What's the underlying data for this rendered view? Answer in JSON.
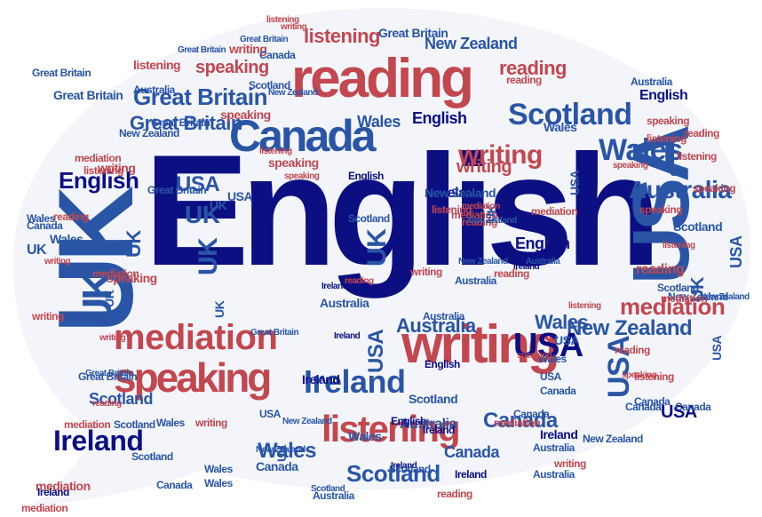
{
  "cloud": {
    "colors": {
      "navy": "#0c0f82",
      "blue": "#2a55a6",
      "red": "#c2474f",
      "lightred": "#d96a70",
      "background": "#f3f5fb",
      "outline": "#ffffff"
    },
    "words": [
      {
        "text": "English",
        "color": "navy"
      },
      {
        "text": "UK",
        "color": "blue"
      },
      {
        "text": "USA",
        "color": "blue"
      },
      {
        "text": "reading",
        "color": "red"
      },
      {
        "text": "writing",
        "color": "red"
      },
      {
        "text": "Canada",
        "color": "blue"
      },
      {
        "text": "speaking",
        "color": "red"
      },
      {
        "text": "listening",
        "color": "red"
      },
      {
        "text": "mediation",
        "color": "red"
      },
      {
        "text": "Scotland",
        "color": "blue"
      },
      {
        "text": "Wales",
        "color": "blue"
      },
      {
        "text": "Ireland",
        "color": "blue"
      },
      {
        "text": "Great Britain",
        "color": "blue"
      },
      {
        "text": "Australia",
        "color": "blue"
      },
      {
        "text": "New Zealand",
        "color": "blue"
      },
      {
        "text": "UK",
        "color": "blue"
      },
      {
        "text": "USA",
        "color": "blue"
      },
      {
        "text": "English",
        "color": "navy"
      },
      {
        "text": "Canada",
        "color": "blue"
      },
      {
        "text": "Scotland",
        "color": "blue"
      },
      {
        "text": "listening",
        "color": "red"
      },
      {
        "text": "Ireland",
        "color": "navy"
      },
      {
        "text": "Wales",
        "color": "blue"
      },
      {
        "text": "Australia",
        "color": "blue"
      },
      {
        "text": "New Zealand",
        "color": "blue"
      },
      {
        "text": "writing",
        "color": "red"
      },
      {
        "text": "reading",
        "color": "red"
      },
      {
        "text": "speaking",
        "color": "red"
      },
      {
        "text": "mediation",
        "color": "red"
      },
      {
        "text": "Great Britain",
        "color": "blue"
      },
      {
        "text": "UK",
        "color": "blue"
      },
      {
        "text": "USA",
        "color": "navy"
      },
      {
        "text": "English",
        "color": "navy"
      },
      {
        "text": "UK",
        "color": "blue"
      },
      {
        "text": "UK",
        "color": "blue"
      },
      {
        "text": "USA",
        "color": "blue"
      },
      {
        "text": "Ireland",
        "color": "navy"
      },
      {
        "text": "Wales",
        "color": "blue"
      },
      {
        "text": "Canada",
        "color": "blue"
      },
      {
        "text": "Scotland",
        "color": "blue"
      },
      {
        "text": "Australia",
        "color": "blue"
      },
      {
        "text": "Great Britain",
        "color": "blue"
      },
      {
        "text": "New Zealand",
        "color": "blue"
      },
      {
        "text": "writing",
        "color": "red"
      },
      {
        "text": "reading",
        "color": "red"
      },
      {
        "text": "speaking",
        "color": "red"
      },
      {
        "text": "listening",
        "color": "red"
      },
      {
        "text": "mediation",
        "color": "red"
      },
      {
        "text": "UK",
        "color": "blue"
      },
      {
        "text": "USA",
        "color": "blue"
      },
      {
        "text": "English",
        "color": "navy"
      },
      {
        "text": "Ireland",
        "color": "navy"
      },
      {
        "text": "Wales",
        "color": "blue"
      },
      {
        "text": "Canada",
        "color": "blue"
      },
      {
        "text": "Scotland",
        "color": "blue"
      },
      {
        "text": "Australia",
        "color": "blue"
      },
      {
        "text": "New Zealand",
        "color": "blue"
      },
      {
        "text": "Great Britain",
        "color": "blue"
      },
      {
        "text": "writing",
        "color": "red"
      },
      {
        "text": "reading",
        "color": "red"
      },
      {
        "text": "speaking",
        "color": "red"
      },
      {
        "text": "listening",
        "color": "red"
      },
      {
        "text": "mediation",
        "color": "red"
      },
      {
        "text": "UK",
        "color": "blue"
      },
      {
        "text": "USA",
        "color": "navy"
      },
      {
        "text": "English",
        "color": "navy"
      },
      {
        "text": "Ireland",
        "color": "navy"
      },
      {
        "text": "Wales",
        "color": "blue"
      },
      {
        "text": "Canada",
        "color": "blue"
      },
      {
        "text": "Scotland",
        "color": "blue"
      },
      {
        "text": "Australia",
        "color": "blue"
      },
      {
        "text": "New Zealand",
        "color": "blue"
      },
      {
        "text": "Great Britain",
        "color": "blue"
      },
      {
        "text": "writing",
        "color": "red"
      },
      {
        "text": "reading",
        "color": "red"
      },
      {
        "text": "speaking",
        "color": "red"
      },
      {
        "text": "listening",
        "color": "red"
      },
      {
        "text": "mediation",
        "color": "red"
      },
      {
        "text": "UK",
        "color": "blue"
      },
      {
        "text": "USA",
        "color": "blue"
      },
      {
        "text": "English",
        "color": "navy"
      },
      {
        "text": "Ireland",
        "color": "navy"
      },
      {
        "text": "Wales",
        "color": "blue"
      },
      {
        "text": "Canada",
        "color": "blue"
      },
      {
        "text": "Scotland",
        "color": "blue"
      },
      {
        "text": "Australia",
        "color": "blue"
      },
      {
        "text": "New Zealand",
        "color": "blue"
      },
      {
        "text": "Great Britain",
        "color": "blue"
      },
      {
        "text": "writing",
        "color": "red"
      },
      {
        "text": "reading",
        "color": "red"
      },
      {
        "text": "speaking",
        "color": "red"
      },
      {
        "text": "listening",
        "color": "red"
      },
      {
        "text": "mediation",
        "color": "red"
      },
      {
        "text": "UK",
        "color": "blue"
      },
      {
        "text": "USA",
        "color": "blue"
      },
      {
        "text": "Ireland",
        "color": "navy"
      },
      {
        "text": "Wales",
        "color": "blue"
      },
      {
        "text": "Canada",
        "color": "blue"
      },
      {
        "text": "Scotland",
        "color": "blue"
      },
      {
        "text": "Australia",
        "color": "blue"
      },
      {
        "text": "New Zealand",
        "color": "blue"
      },
      {
        "text": "Great Britain",
        "color": "blue"
      },
      {
        "text": "writing",
        "color": "red"
      },
      {
        "text": "reading",
        "color": "red"
      },
      {
        "text": "speaking",
        "color": "red"
      },
      {
        "text": "listening",
        "color": "red"
      },
      {
        "text": "mediation",
        "color": "red"
      },
      {
        "text": "UK",
        "color": "blue"
      },
      {
        "text": "USA",
        "color": "blue"
      },
      {
        "text": "English",
        "color": "navy"
      },
      {
        "text": "Ireland",
        "color": "navy"
      },
      {
        "text": "Wales",
        "color": "blue"
      },
      {
        "text": "Canada",
        "color": "blue"
      },
      {
        "text": "Scotland",
        "color": "blue"
      },
      {
        "text": "Australia",
        "color": "blue"
      },
      {
        "text": "New Zealand",
        "color": "blue"
      },
      {
        "text": "Great Britain",
        "color": "blue"
      },
      {
        "text": "writing",
        "color": "red"
      },
      {
        "text": "reading",
        "color": "red"
      },
      {
        "text": "speaking",
        "color": "red"
      },
      {
        "text": "listening",
        "color": "red"
      },
      {
        "text": "mediation",
        "color": "red"
      },
      {
        "text": "UK",
        "color": "blue"
      },
      {
        "text": "USA",
        "color": "blue"
      },
      {
        "text": "Ireland",
        "color": "navy"
      },
      {
        "text": "Wales",
        "color": "blue"
      },
      {
        "text": "Canada",
        "color": "blue"
      },
      {
        "text": "Scotland",
        "color": "blue"
      },
      {
        "text": "Australia",
        "color": "blue"
      },
      {
        "text": "New Zealand",
        "color": "blue"
      },
      {
        "text": "Great Britain",
        "color": "blue"
      },
      {
        "text": "writing",
        "color": "red"
      },
      {
        "text": "reading",
        "color": "red"
      },
      {
        "text": "speaking",
        "color": "red"
      },
      {
        "text": "listening",
        "color": "red"
      },
      {
        "text": "mediation",
        "color": "red"
      },
      {
        "text": "UK",
        "color": "blue"
      },
      {
        "text": "USA",
        "color": "blue"
      },
      {
        "text": "English",
        "color": "navy"
      },
      {
        "text": "Ireland",
        "color": "navy"
      },
      {
        "text": "Wales",
        "color": "blue"
      },
      {
        "text": "Canada",
        "color": "blue"
      },
      {
        "text": "Scotland",
        "color": "blue"
      },
      {
        "text": "Australia",
        "color": "blue"
      },
      {
        "text": "New Zealand",
        "color": "blue"
      },
      {
        "text": "Great Britain",
        "color": "blue"
      },
      {
        "text": "writing",
        "color": "red"
      },
      {
        "text": "reading",
        "color": "red"
      },
      {
        "text": "speaking",
        "color": "red"
      },
      {
        "text": "listening",
        "color": "red"
      },
      {
        "text": "mediation",
        "color": "red"
      },
      {
        "text": "UK",
        "color": "blue"
      },
      {
        "text": "USA",
        "color": "blue"
      },
      {
        "text": "Ireland",
        "color": "navy"
      },
      {
        "text": "Wales",
        "color": "blue"
      },
      {
        "text": "Canada",
        "color": "blue"
      },
      {
        "text": "Scotland",
        "color": "blue"
      },
      {
        "text": "Australia",
        "color": "blue"
      },
      {
        "text": "New Zealand",
        "color": "blue"
      },
      {
        "text": "Great Britain",
        "color": "blue"
      },
      {
        "text": "writing",
        "color": "red"
      },
      {
        "text": "reading",
        "color": "red"
      },
      {
        "text": "speaking",
        "color": "red"
      },
      {
        "text": "listening",
        "color": "red"
      },
      {
        "text": "mediation",
        "color": "red"
      },
      {
        "text": "UK",
        "color": "blue"
      },
      {
        "text": "USA",
        "color": "blue"
      },
      {
        "text": "Ireland",
        "color": "navy"
      },
      {
        "text": "Wales",
        "color": "blue"
      },
      {
        "text": "Canada",
        "color": "blue"
      },
      {
        "text": "Scotland",
        "color": "blue"
      },
      {
        "text": "Australia",
        "color": "blue"
      },
      {
        "text": "New Zealand",
        "color": "blue"
      },
      {
        "text": "Great Britain",
        "color": "blue"
      },
      {
        "text": "writing",
        "color": "red"
      },
      {
        "text": "reading",
        "color": "red"
      },
      {
        "text": "speaking",
        "color": "red"
      },
      {
        "text": "listening",
        "color": "red"
      },
      {
        "text": "mediation",
        "color": "red"
      }
    ]
  }
}
